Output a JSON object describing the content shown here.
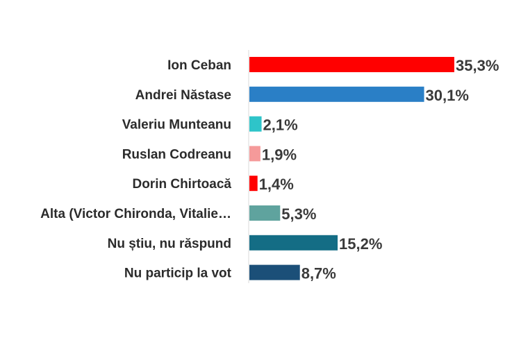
{
  "chart_data": {
    "type": "bar",
    "orientation": "horizontal",
    "categories": [
      "Ion Ceban",
      "Andrei Năstase",
      "Valeriu Munteanu",
      "Ruslan Codreanu",
      "Dorin Chirtoacă",
      "Alta (Victor Chironda, Vitalie…",
      "Nu știu, nu răspund",
      "Nu particip la vot"
    ],
    "values": [
      35.3,
      30.1,
      2.1,
      1.9,
      1.4,
      5.3,
      15.2,
      8.7
    ],
    "value_labels": [
      "35,3%",
      "30,1%",
      "2,1%",
      "1,9%",
      "1,4%",
      "5,3%",
      "15,2%",
      "8,7%"
    ],
    "colors": [
      "#ff0000",
      "#2a7fc6",
      "#2ec4c9",
      "#f59a9a",
      "#ff0000",
      "#5fa39e",
      "#146d85",
      "#1b4f78"
    ],
    "xlim": [
      0,
      35.3
    ],
    "grid": false,
    "legend": "none",
    "title": "",
    "xlabel": "",
    "ylabel": ""
  }
}
